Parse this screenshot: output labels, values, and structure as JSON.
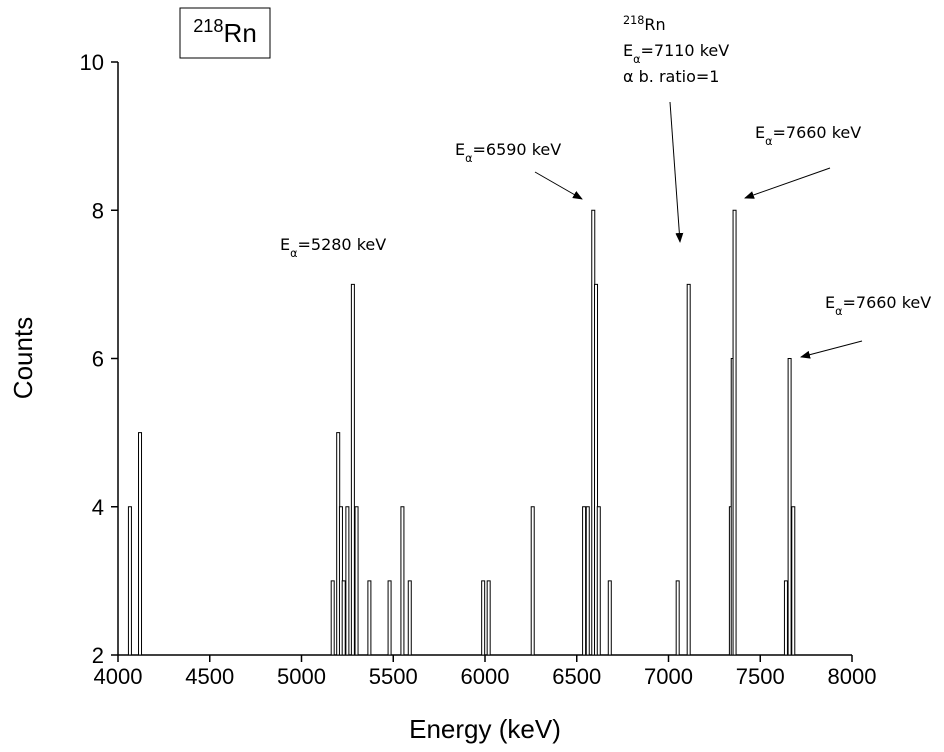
{
  "chart_data": {
    "type": "bar",
    "title_box": [
      {
        "t": "218",
        "sup": true
      },
      {
        "t": "Rn"
      }
    ],
    "x_label": "Energy (keV)",
    "y_label": "Counts",
    "x": [
      4065,
      4120,
      5170,
      5200,
      5215,
      5230,
      5250,
      5280,
      5300,
      5370,
      5480,
      5550,
      5590,
      5990,
      6020,
      6260,
      6540,
      6560,
      6590,
      6605,
      6620,
      6680,
      7050,
      7110,
      7340,
      7350,
      7360,
      7640,
      7660,
      7680
    ],
    "values": [
      4,
      5,
      3,
      5,
      4,
      3,
      4,
      7,
      4,
      3,
      3,
      4,
      3,
      3,
      3,
      4,
      4,
      4,
      8,
      7,
      4,
      3,
      3,
      7,
      4,
      6,
      8,
      3,
      6,
      4
    ],
    "color": "#000000",
    "xlim": [
      4000,
      8000
    ],
    "xticks": [
      4000,
      4500,
      5000,
      5500,
      6000,
      6500,
      7000,
      7500,
      8000
    ],
    "ylim": [
      2,
      10
    ],
    "yticks": [
      2,
      4,
      6,
      8,
      10
    ],
    "annotations": [
      {
        "lines": [
          [
            {
              "t": "E"
            },
            {
              "t": "α",
              "sub": true
            },
            {
              "t": "=5280 keV"
            }
          ]
        ]
      },
      {
        "lines": [
          [
            {
              "t": "E"
            },
            {
              "t": "α",
              "sub": true
            },
            {
              "t": "=6590 keV"
            }
          ]
        ]
      },
      {
        "lines": [
          [
            {
              "t": "218",
              "sup": true
            },
            {
              "t": "Rn"
            }
          ],
          [
            {
              "t": "E"
            },
            {
              "t": "α",
              "sub": true
            },
            {
              "t": "=7110 keV"
            }
          ],
          [
            {
              "t": "α  b. ratio=1"
            }
          ]
        ]
      },
      {
        "lines": [
          [
            {
              "t": "E"
            },
            {
              "t": "α",
              "sub": true
            },
            {
              "t": "=7660 keV"
            }
          ]
        ]
      },
      {
        "lines": [
          [
            {
              "t": "E"
            },
            {
              "t": "α",
              "sub": true
            },
            {
              "t": "=7660 keV"
            }
          ]
        ]
      }
    ]
  }
}
